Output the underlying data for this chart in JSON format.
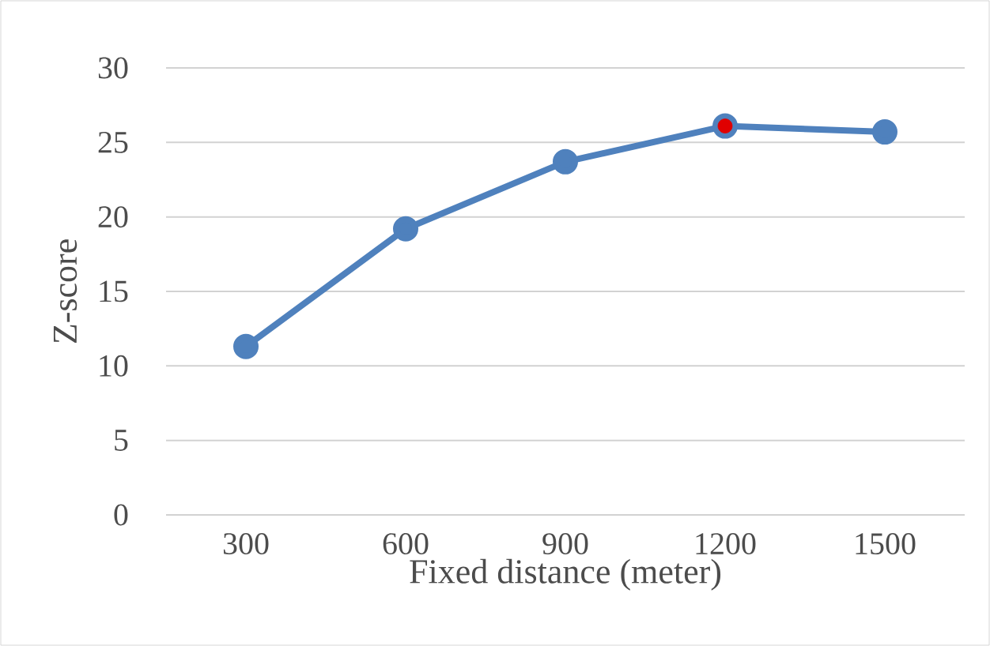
{
  "chart_data": {
    "type": "line",
    "xlabel": "Fixed distance (meter)",
    "ylabel": "Z-score",
    "categories": [
      "300",
      "600",
      "900",
      "1200",
      "1500"
    ],
    "series": [
      {
        "color": "#4f81bd",
        "colors": [
          "#4f81bd",
          "#4f81bd",
          "#4f81bd",
          "#e00000",
          "#4f81bd"
        ],
        "values": [
          11.3,
          19.2,
          23.7,
          26.1,
          25.7
        ]
      }
    ],
    "ylim": [
      0,
      30
    ],
    "yticks": [
      0,
      5,
      10,
      15,
      20,
      25,
      30
    ],
    "grid": "y",
    "marker": "circle",
    "line_style": "solid"
  }
}
